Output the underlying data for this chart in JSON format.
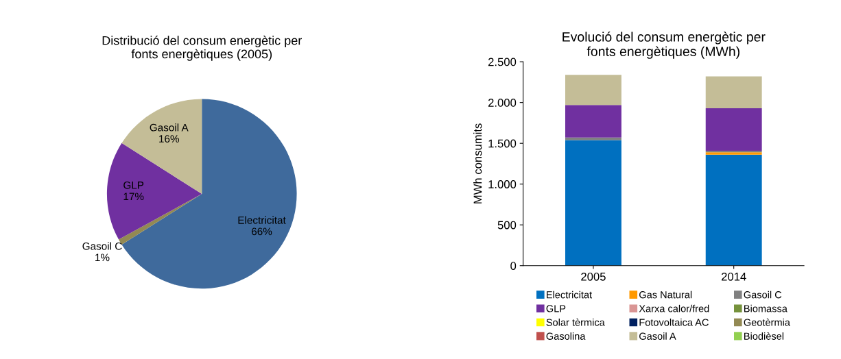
{
  "chart_data": [
    {
      "type": "pie",
      "title": "Distribució del consum energètic per fonts energètiques (2005)",
      "categories": [
        "Electricitat",
        "Gasoil C",
        "GLP",
        "Gasoil A"
      ],
      "values": [
        66,
        1,
        17,
        16
      ],
      "colors": [
        "#3f6a9c",
        "#938953",
        "#7030a0",
        "#c4bd97"
      ],
      "value_labels": [
        "66%",
        "1%",
        "17%",
        "16%"
      ]
    },
    {
      "type": "bar",
      "stacked": true,
      "title": "Evolució del consum energètic per fonts energètiques (MWh)",
      "ylabel": "MWh consumits",
      "categories": [
        "2005",
        "2014"
      ],
      "ylim": [
        0,
        2500
      ],
      "yticks": [
        {
          "value": 0,
          "label": "0"
        },
        {
          "value": 500,
          "label": "500"
        },
        {
          "value": 1000,
          "label": "1.000"
        },
        {
          "value": 1500,
          "label": "1.500"
        },
        {
          "value": 2000,
          "label": "2.000"
        },
        {
          "value": 2500,
          "label": "2.500"
        }
      ],
      "legend": "bottom",
      "series": [
        {
          "name": "Electricitat",
          "color": "#0070c0",
          "values": [
            1540,
            1360
          ]
        },
        {
          "name": "Gas Natural",
          "color": "#ff9900",
          "values": [
            0,
            30
          ]
        },
        {
          "name": "Gasoil C",
          "color": "#808080",
          "values": [
            30,
            20
          ]
        },
        {
          "name": "GLP",
          "color": "#7030a0",
          "values": [
            400,
            520
          ]
        },
        {
          "name": "Xarxa calor/fred",
          "color": "#d99594",
          "values": [
            0,
            0
          ]
        },
        {
          "name": "Biomassa",
          "color": "#76923c",
          "values": [
            0,
            0
          ]
        },
        {
          "name": "Solar tèrmica",
          "color": "#ffff00",
          "values": [
            0,
            0
          ]
        },
        {
          "name": "Fotovoltaica AC",
          "color": "#002060",
          "values": [
            0,
            0
          ]
        },
        {
          "name": "Geotèrmia",
          "color": "#938953",
          "values": [
            0,
            0
          ]
        },
        {
          "name": "Gasolina",
          "color": "#c0504d",
          "values": [
            0,
            0
          ]
        },
        {
          "name": "Gasoil A",
          "color": "#c4bd97",
          "values": [
            370,
            390
          ]
        },
        {
          "name": "Biodièsel",
          "color": "#92d050",
          "values": [
            0,
            0
          ]
        }
      ]
    }
  ]
}
